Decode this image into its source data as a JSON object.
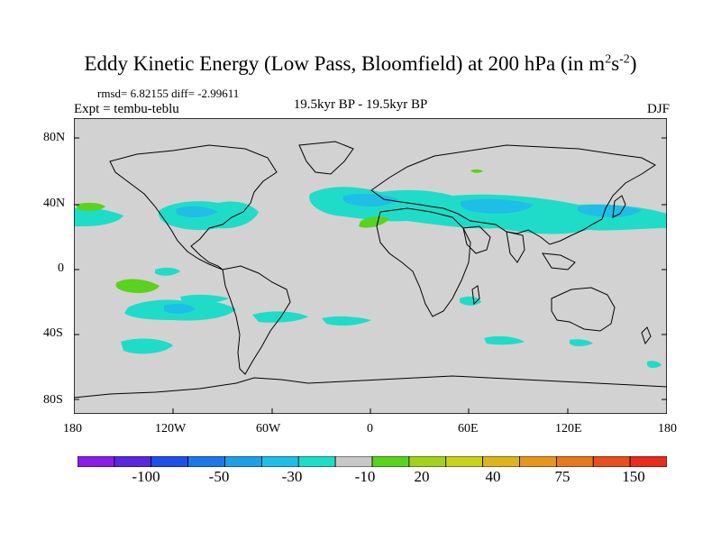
{
  "title": {
    "main": "Eddy Kinetic Energy (Low Pass, Bloomfield) at 200 hPa (in m",
    "sup1": "2",
    "mid": "s",
    "sup2": "-2",
    "end": ")"
  },
  "stats": "rmsd= 6.82155  diff= -2.99611",
  "experiment": "Expt = tembu-teblu",
  "comparison": "19.5kyr BP - 19.5kyr BP",
  "season": "DJF",
  "axes": {
    "lat_labels": [
      "80N",
      "40N",
      "0",
      "40S",
      "80S"
    ],
    "lon_labels": [
      "180",
      "120W",
      "60W",
      "0",
      "60E",
      "120E",
      "180"
    ]
  },
  "colorbar": {
    "colors": [
      "#8a1ee6",
      "#5a28dc",
      "#1f50e6",
      "#1f78e6",
      "#1fa0e6",
      "#1fbee6",
      "#1fdcc8",
      "#c8c8c8",
      "#5ad21e",
      "#a0d21e",
      "#c8d21e",
      "#dcb41e",
      "#e6961e",
      "#e6781e",
      "#e6501e",
      "#e62d1e"
    ],
    "labels": [
      "-100",
      "-50",
      "-30",
      "-10",
      "20",
      "40",
      "75",
      "150"
    ]
  },
  "colors": {
    "land_ocean": "#d2d2d2",
    "coast": "#000000",
    "negative_small": "#1fdcc8",
    "negative_mid": "#1fbee6",
    "negative_large": "#1fa0e6",
    "positive_small": "#5ad21e"
  }
}
